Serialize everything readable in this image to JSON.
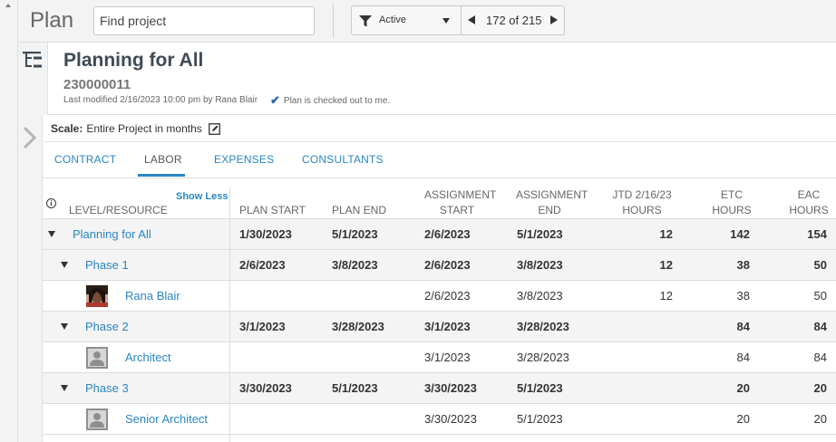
{
  "topbar": {
    "title": "Plan",
    "search_placeholder": "Find project",
    "filter_value": "Active",
    "pager_text": "172 of 215"
  },
  "header": {
    "plan_name": "Planning for All",
    "plan_number": "230000011",
    "modified": "Last modified 2/16/2023 10:00 pm by Rana Blair",
    "checkout": "Plan is checked out to me."
  },
  "scale": {
    "label": "Scale:",
    "value": "Entire Project in months"
  },
  "tabs": [
    {
      "label": "CONTRACT"
    },
    {
      "label": "LABOR"
    },
    {
      "label": "EXPENSES"
    },
    {
      "label": "CONSULTANTS"
    }
  ],
  "active_tab": "LABOR",
  "table": {
    "show_less": "Show Less",
    "headers": {
      "level": "LEVEL/RESOURCE",
      "plan_start": "PLAN START",
      "plan_end": "PLAN END",
      "assign_start_1": "ASSIGNMENT",
      "assign_start_2": "START",
      "assign_end_1": "ASSIGNMENT",
      "assign_end_2": "END",
      "jtd_1": "JTD 2/16/23",
      "jtd_2": "HOURS",
      "etc_1": "ETC",
      "etc_2": "HOURS",
      "eac_1": "EAC",
      "eac_2": "HOURS"
    },
    "rows": [
      {
        "name": "Planning for All",
        "plan_start": "1/30/2023",
        "plan_end": "5/1/2023",
        "assign_start": "2/6/2023",
        "assign_end": "5/1/2023",
        "jtd": "12",
        "etc": "142",
        "eac": "154"
      },
      {
        "name": "Phase 1",
        "plan_start": "2/6/2023",
        "plan_end": "3/8/2023",
        "assign_start": "2/6/2023",
        "assign_end": "3/8/2023",
        "jtd": "12",
        "etc": "38",
        "eac": "50"
      },
      {
        "name": "Rana Blair",
        "plan_start": "",
        "plan_end": "",
        "assign_start": "2/6/2023",
        "assign_end": "3/8/2023",
        "jtd": "12",
        "etc": "38",
        "eac": "50"
      },
      {
        "name": "Phase 2",
        "plan_start": "3/1/2023",
        "plan_end": "3/28/2023",
        "assign_start": "3/1/2023",
        "assign_end": "3/28/2023",
        "jtd": "",
        "etc": "84",
        "eac": "84"
      },
      {
        "name": "Architect",
        "plan_start": "",
        "plan_end": "",
        "assign_start": "3/1/2023",
        "assign_end": "3/28/2023",
        "jtd": "",
        "etc": "84",
        "eac": "84"
      },
      {
        "name": "Phase 3",
        "plan_start": "3/30/2023",
        "plan_end": "5/1/2023",
        "assign_start": "3/30/2023",
        "assign_end": "5/1/2023",
        "jtd": "",
        "etc": "20",
        "eac": "20"
      },
      {
        "name": "Senior Architect",
        "plan_start": "",
        "plan_end": "",
        "assign_start": "3/30/2023",
        "assign_end": "5/1/2023",
        "jtd": "",
        "etc": "20",
        "eac": "20"
      }
    ]
  },
  "icons": {
    "filter": "filter-icon",
    "tree": "tree-view-icon",
    "expand": "chevron-right-icon",
    "edit": "edit-icon",
    "info": "info-icon",
    "check": "checkmark-icon"
  },
  "colors": {
    "link": "#2a86c0",
    "title": "#3f4a55",
    "group_row": "#f4f4f4"
  }
}
